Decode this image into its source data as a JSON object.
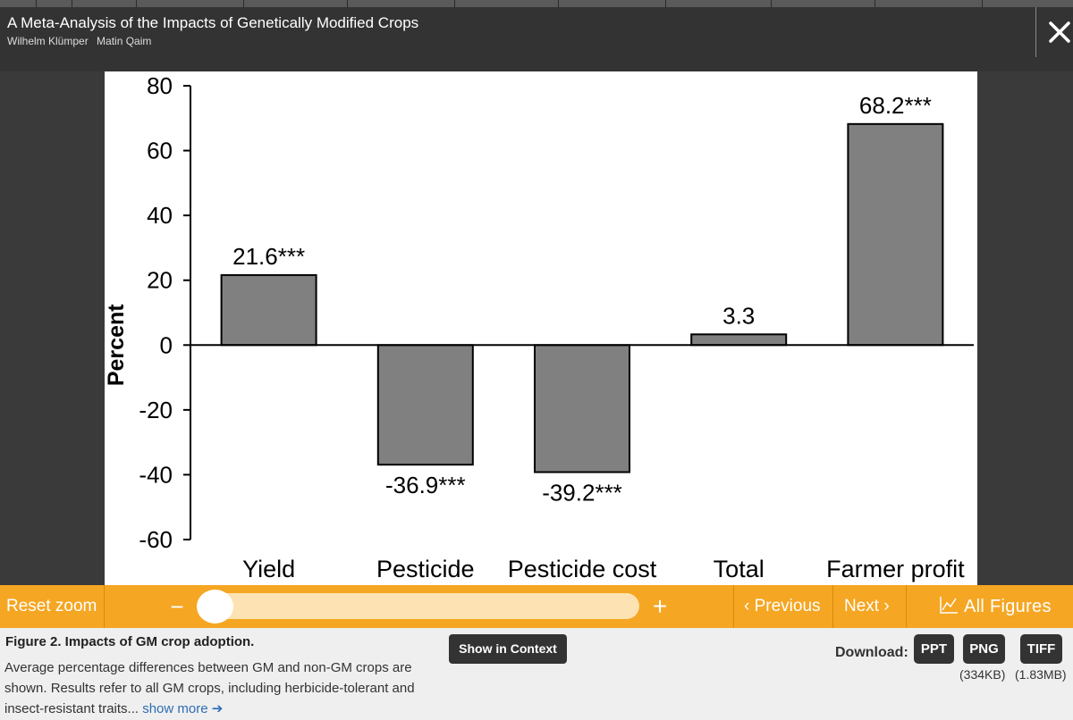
{
  "header": {
    "title": "A Meta-Analysis of the Impacts of Genetically Modified Crops",
    "authors": [
      "Wilhelm Klümper",
      "Matin Qaim"
    ],
    "close_icon": "close-x-icon"
  },
  "chart_data": {
    "type": "bar",
    "categories": [
      "Yield",
      "Pesticide",
      "Pesticide cost",
      "Total",
      "Farmer profit"
    ],
    "values": [
      21.6,
      -36.9,
      -39.2,
      3.3,
      68.2
    ],
    "data_labels": [
      "21.6***",
      "-36.9***",
      "-39.2***",
      "3.3",
      "68.2***"
    ],
    "ylabel": "Percent",
    "xlabel": "",
    "ylim": [
      -60,
      80
    ],
    "yticks": [
      80,
      60,
      40,
      20,
      0,
      -20,
      -40,
      -60
    ],
    "bar_color": "#808080",
    "grid": false
  },
  "toolbar": {
    "reset_zoom": "Reset zoom",
    "zoom_out": "−",
    "zoom_in": "+",
    "zoom_level": 0,
    "previous": "‹ Previous",
    "next": "Next ›",
    "all_figures": "All Figures",
    "accent_color": "#f5a623"
  },
  "caption": {
    "title": "Figure 2. Impacts of GM crop adoption.",
    "text": "Average percentage differences between GM and non-GM crops are shown. Results refer to all GM crops, including herbicide-tolerant and insect-resistant traits...",
    "show_more": "show more ➔",
    "show_in_context": "Show in Context"
  },
  "download": {
    "label": "Download:",
    "ppt": "PPT",
    "png": "PNG",
    "tiff": "TIFF",
    "png_size": "(334KB)",
    "tiff_size": "(1.83MB)"
  }
}
